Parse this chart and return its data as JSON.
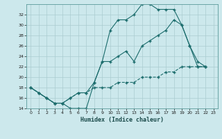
{
  "xlabel": "Humidex (Indice chaleur)",
  "bg_color": "#cce8ec",
  "line_color": "#1a6b6b",
  "grid_color": "#aaccd0",
  "ylim": [
    14,
    34
  ],
  "xlim": [
    -0.5,
    23.5
  ],
  "yticks": [
    14,
    16,
    18,
    20,
    22,
    24,
    26,
    28,
    30,
    32
  ],
  "xticks": [
    0,
    1,
    2,
    3,
    4,
    5,
    6,
    7,
    8,
    9,
    10,
    11,
    12,
    13,
    14,
    15,
    16,
    17,
    18,
    19,
    20,
    21,
    22,
    23
  ],
  "series1_x": [
    0,
    1,
    2,
    3,
    4,
    5,
    6,
    7,
    8,
    9,
    10,
    11,
    12,
    13,
    14,
    15,
    16,
    17,
    18,
    19,
    20,
    21,
    22
  ],
  "series1_y": [
    18,
    17,
    16,
    15,
    15,
    14,
    14,
    14,
    19,
    23,
    29,
    31,
    31,
    32,
    34,
    34,
    33,
    33,
    33,
    30,
    26,
    23,
    22
  ],
  "series2_x": [
    0,
    1,
    2,
    3,
    4,
    5,
    6,
    7,
    8,
    9,
    10,
    11,
    12,
    13,
    14,
    15,
    16,
    17,
    18,
    19,
    20,
    21,
    22
  ],
  "series2_y": [
    18,
    17,
    16,
    15,
    15,
    16,
    17,
    17,
    19,
    23,
    23,
    24,
    25,
    23,
    26,
    27,
    28,
    29,
    31,
    30,
    26,
    22,
    22
  ],
  "series3_x": [
    0,
    1,
    2,
    3,
    4,
    5,
    6,
    7,
    8,
    9,
    10,
    11,
    12,
    13,
    14,
    15,
    16,
    17,
    18,
    19,
    20,
    21,
    22
  ],
  "series3_y": [
    18,
    17,
    16,
    15,
    15,
    16,
    17,
    17,
    18,
    18,
    18,
    19,
    19,
    19,
    20,
    20,
    20,
    21,
    21,
    22,
    22,
    22,
    22
  ]
}
